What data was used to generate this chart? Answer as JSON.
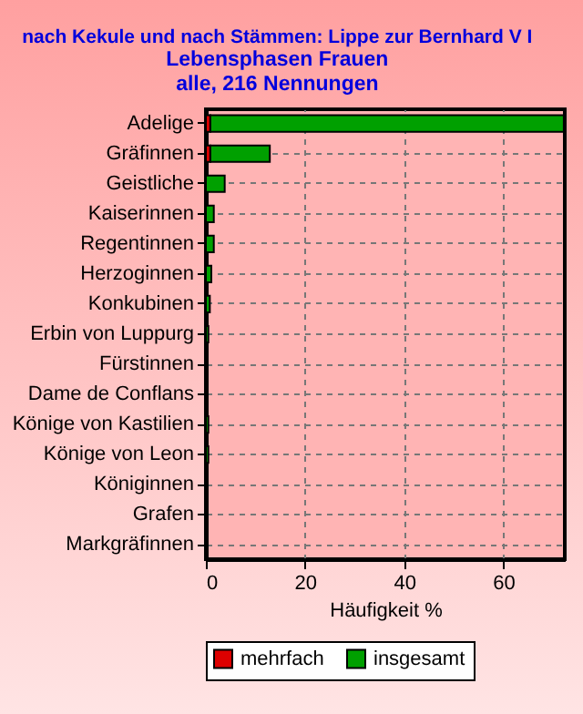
{
  "chart_data": {
    "type": "bar",
    "orientation": "horizontal",
    "stacked": true,
    "title": "nach Kekule und nach Stämmen: Lippe zur Bernhard V I",
    "subtitle": "Lebensphasen Frauen\nalle, 216 Nennungen",
    "xlabel": "Häufigkeit %",
    "categories": [
      "Adelige",
      "Gräfinnen",
      "Geistliche",
      "Kaiserinnen",
      "Regentinnen",
      "Herzoginnen",
      "Konkubinen",
      "Erbin von Luppurg",
      "Fürstinnen",
      "Dame de Conflans",
      "Könige von Kastilien",
      "Könige von Leon",
      "Königinnen",
      "Grafen",
      "Markgräfinnen"
    ],
    "series": [
      {
        "name": "mehrfach",
        "color": "#dd0000",
        "values": [
          0.9,
          0.9,
          0,
          0,
          0,
          0,
          0,
          0,
          0,
          0,
          0,
          0,
          0,
          0,
          0
        ]
      },
      {
        "name": "insgesamt",
        "color": "#00a000",
        "values": [
          71.3,
          12,
          3.8,
          1.6,
          1.6,
          1.1,
          0.8,
          0.5,
          0,
          0,
          0.5,
          0.5,
          0,
          0,
          0
        ]
      }
    ],
    "xlim": [
      0,
      72.4
    ],
    "xticks": [
      0,
      20,
      40,
      60
    ],
    "grid": true,
    "legend": "bottom"
  }
}
